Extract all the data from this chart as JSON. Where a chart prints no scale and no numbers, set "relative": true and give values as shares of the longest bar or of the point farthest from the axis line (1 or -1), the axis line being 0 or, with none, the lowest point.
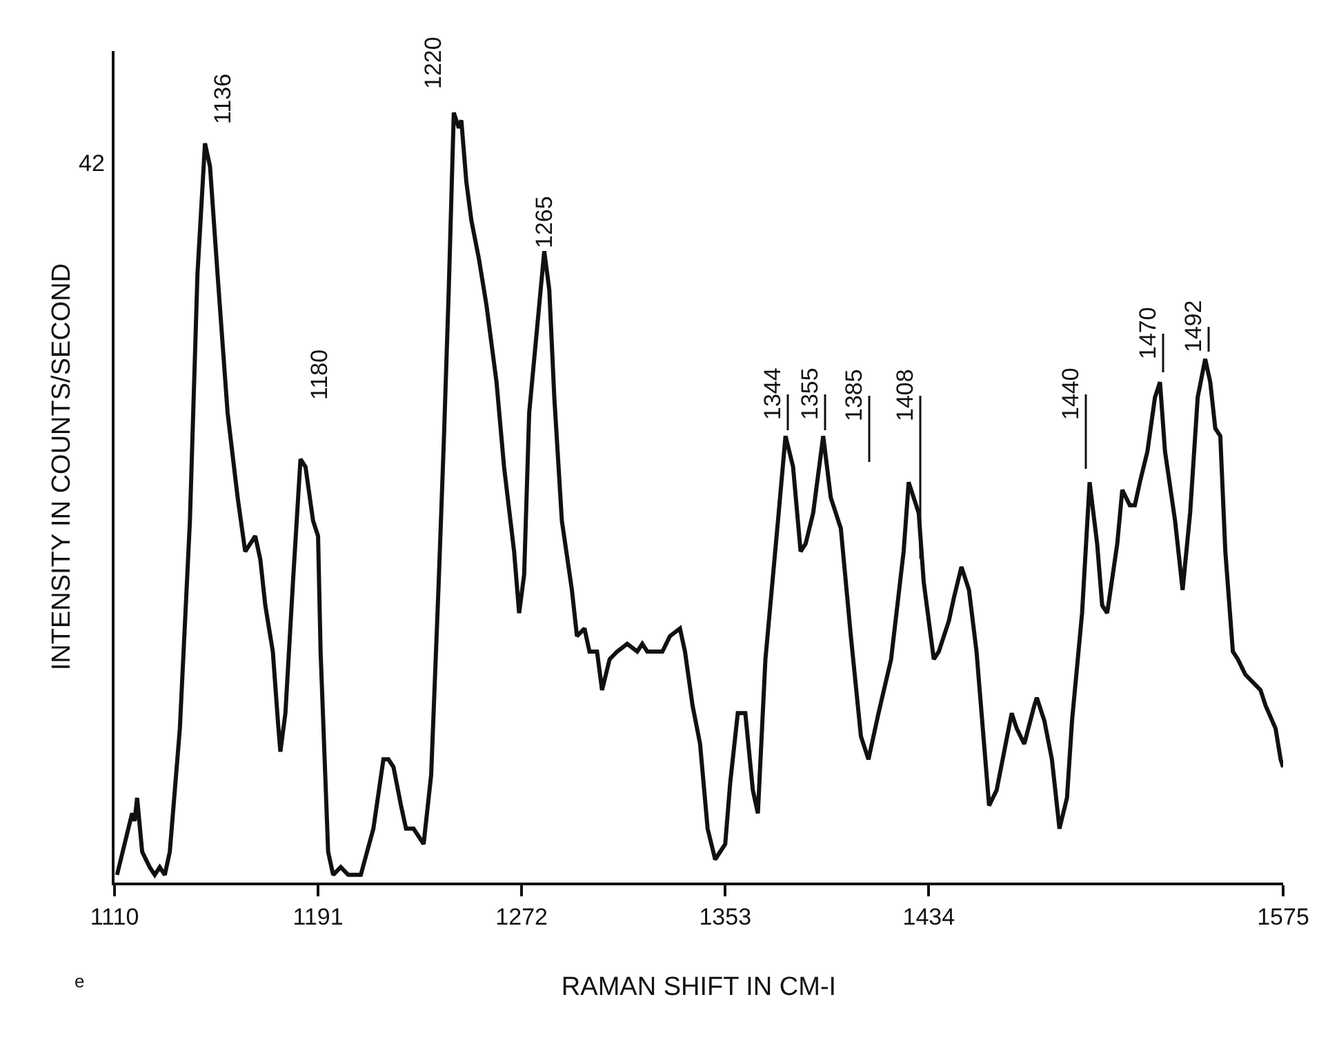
{
  "chart_data": {
    "type": "line",
    "relative": true,
    "xlabel": "RAMAN SHIFT IN CM-I",
    "ylabel": "INTENSITY IN COUNTS/SECOND",
    "xlim": [
      1110,
      1575
    ],
    "xticks": [
      1110,
      1191,
      1272,
      1353,
      1434,
      1575
    ],
    "marker": "none",
    "line_style": "solid",
    "series": [
      {
        "color": "#111111",
        "x": [
          1111,
          1114,
          1117,
          1118,
          1119,
          1121,
          1124,
          1126,
          1128,
          1130,
          1132,
          1136,
          1140,
          1143,
          1146,
          1148,
          1151,
          1155,
          1159,
          1162,
          1164,
          1166,
          1168,
          1170,
          1173,
          1175,
          1176,
          1178,
          1181,
          1184,
          1186,
          1189,
          1191,
          1192,
          1195,
          1197,
          1200,
          1203,
          1208,
          1213,
          1217,
          1219,
          1221,
          1224,
          1226,
          1229,
          1233,
          1236,
          1239,
          1241,
          1243,
          1245,
          1247,
          1248,
          1250,
          1252,
          1255,
          1258,
          1262,
          1265,
          1269,
          1271,
          1273,
          1275,
          1279,
          1281,
          1283,
          1285,
          1288,
          1292,
          1294,
          1297,
          1299,
          1302,
          1304,
          1307,
          1310,
          1314,
          1318,
          1320,
          1322,
          1328,
          1331,
          1335,
          1337,
          1340,
          1343,
          1346,
          1349,
          1353,
          1355,
          1358,
          1361,
          1364,
          1366,
          1369,
          1374,
          1377,
          1380,
          1383,
          1385,
          1388,
          1390,
          1392,
          1395,
          1399,
          1403,
          1407,
          1410,
          1414,
          1419,
          1424,
          1426,
          1430,
          1432,
          1436,
          1438,
          1442,
          1444,
          1447,
          1450,
          1453,
          1456,
          1458,
          1461,
          1464,
          1467,
          1469,
          1472,
          1476,
          1477,
          1480,
          1483,
          1486,
          1489,
          1491,
          1495,
          1498,
          1501,
          1503,
          1505,
          1509,
          1511,
          1514,
          1516,
          1518,
          1521,
          1524,
          1526,
          1528,
          1532,
          1535,
          1538,
          1541,
          1544,
          1546,
          1548,
          1550,
          1552,
          1555,
          1557,
          1560,
          1563,
          1566,
          1568,
          1572,
          1574,
          1575
        ],
        "values": [
          0.01,
          0.05,
          0.09,
          0.08,
          0.11,
          0.04,
          0.02,
          0.01,
          0.02,
          0.01,
          0.04,
          0.2,
          0.47,
          0.79,
          0.96,
          0.93,
          0.79,
          0.61,
          0.5,
          0.43,
          0.44,
          0.45,
          0.42,
          0.36,
          0.3,
          0.21,
          0.17,
          0.22,
          0.39,
          0.55,
          0.54,
          0.47,
          0.45,
          0.3,
          0.04,
          0.01,
          0.02,
          0.01,
          0.01,
          0.07,
          0.16,
          0.16,
          0.15,
          0.1,
          0.07,
          0.07,
          0.05,
          0.14,
          0.39,
          0.57,
          0.77,
          1,
          0.98,
          0.99,
          0.91,
          0.86,
          0.81,
          0.75,
          0.65,
          0.54,
          0.43,
          0.35,
          0.4,
          0.61,
          0.75,
          0.82,
          0.77,
          0.63,
          0.47,
          0.38,
          0.32,
          0.33,
          0.3,
          0.3,
          0.25,
          0.29,
          0.3,
          0.31,
          0.3,
          0.31,
          0.3,
          0.3,
          0.32,
          0.33,
          0.3,
          0.23,
          0.18,
          0.07,
          0.03,
          0.05,
          0.13,
          0.22,
          0.22,
          0.12,
          0.09,
          0.29,
          0.47,
          0.58,
          0.54,
          0.43,
          0.44,
          0.48,
          0.53,
          0.58,
          0.5,
          0.46,
          0.32,
          0.19,
          0.16,
          0.22,
          0.29,
          0.43,
          0.52,
          0.48,
          0.39,
          0.29,
          0.3,
          0.34,
          0.37,
          0.41,
          0.38,
          0.3,
          0.18,
          0.1,
          0.12,
          0.17,
          0.22,
          0.2,
          0.18,
          0.23,
          0.24,
          0.21,
          0.16,
          0.07,
          0.11,
          0.21,
          0.35,
          0.52,
          0.44,
          0.36,
          0.35,
          0.44,
          0.51,
          0.49,
          0.49,
          0.52,
          0.56,
          0.63,
          0.65,
          0.56,
          0.47,
          0.38,
          0.48,
          0.63,
          0.68,
          0.65,
          0.59,
          0.58,
          0.43,
          0.3,
          0.29,
          0.27,
          0.26,
          0.25,
          0.23,
          0.2,
          0.16,
          0.15
        ]
      }
    ],
    "annotations": [
      "1136",
      "1180",
      "1220",
      "1265",
      "1344",
      "1355",
      "1385",
      "1408",
      "1440",
      "1470",
      "1492",
      "42",
      "e"
    ]
  }
}
